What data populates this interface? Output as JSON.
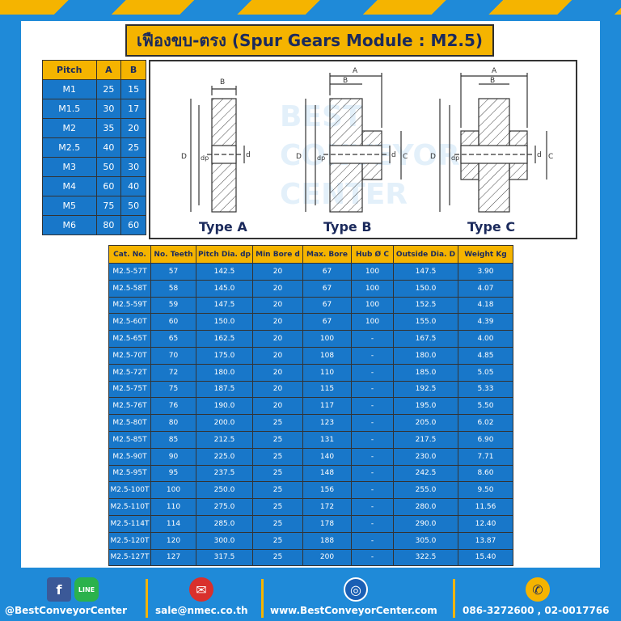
{
  "title": "เฟืองขบ-ตรง (Spur Gears Module : M2.5)",
  "pitch_table": {
    "headers": [
      "Pitch",
      "A",
      "B"
    ],
    "rows": [
      [
        "M1",
        "25",
        "15"
      ],
      [
        "M1.5",
        "30",
        "17"
      ],
      [
        "M2",
        "35",
        "20"
      ],
      [
        "M2.5",
        "40",
        "25"
      ],
      [
        "M3",
        "50",
        "30"
      ],
      [
        "M4",
        "60",
        "40"
      ],
      [
        "M5",
        "75",
        "50"
      ],
      [
        "M6",
        "80",
        "60"
      ]
    ]
  },
  "diagram": {
    "types": [
      "Type A",
      "Type B",
      "Type C"
    ],
    "dim_labels": {
      "a": "A",
      "b": "B",
      "d_outer": "D",
      "dp": "dp",
      "d_bore": "d",
      "c": "C"
    },
    "watermark": [
      "BEST",
      "CONVEYOR",
      "CENTER"
    ]
  },
  "spec_table": {
    "headers": [
      "Cat. No.",
      "No. Teeth",
      "Pitch Dia. dp",
      "Min Bore d",
      "Max. Bore",
      "Hub Ø C",
      "Outside Dia. D",
      "Weight Kg"
    ],
    "rows": [
      [
        "M2.5-57T",
        "57",
        "142.5",
        "20",
        "67",
        "100",
        "147.5",
        "3.90"
      ],
      [
        "M2.5-58T",
        "58",
        "145.0",
        "20",
        "67",
        "100",
        "150.0",
        "4.07"
      ],
      [
        "M2.5-59T",
        "59",
        "147.5",
        "20",
        "67",
        "100",
        "152.5",
        "4.18"
      ],
      [
        "M2.5-60T",
        "60",
        "150.0",
        "20",
        "67",
        "100",
        "155.0",
        "4.39"
      ],
      [
        "M2.5-65T",
        "65",
        "162.5",
        "20",
        "100",
        "-",
        "167.5",
        "4.00"
      ],
      [
        "M2.5-70T",
        "70",
        "175.0",
        "20",
        "108",
        "-",
        "180.0",
        "4.85"
      ],
      [
        "M2.5-72T",
        "72",
        "180.0",
        "20",
        "110",
        "-",
        "185.0",
        "5.05"
      ],
      [
        "M2.5-75T",
        "75",
        "187.5",
        "20",
        "115",
        "-",
        "192.5",
        "5.33"
      ],
      [
        "M2.5-76T",
        "76",
        "190.0",
        "20",
        "117",
        "-",
        "195.0",
        "5.50"
      ],
      [
        "M2.5-80T",
        "80",
        "200.0",
        "25",
        "123",
        "-",
        "205.0",
        "6.02"
      ],
      [
        "M2.5-85T",
        "85",
        "212.5",
        "25",
        "131",
        "-",
        "217.5",
        "6.90"
      ],
      [
        "M2.5-90T",
        "90",
        "225.0",
        "25",
        "140",
        "-",
        "230.0",
        "7.71"
      ],
      [
        "M2.5-95T",
        "95",
        "237.5",
        "25",
        "148",
        "-",
        "242.5",
        "8.60"
      ],
      [
        "M2.5-100T",
        "100",
        "250.0",
        "25",
        "156",
        "-",
        "255.0",
        "9.50"
      ],
      [
        "M2.5-110T",
        "110",
        "275.0",
        "25",
        "172",
        "-",
        "280.0",
        "11.56"
      ],
      [
        "M2.5-114T",
        "114",
        "285.0",
        "25",
        "178",
        "-",
        "290.0",
        "12.40"
      ],
      [
        "M2.5-120T",
        "120",
        "300.0",
        "25",
        "188",
        "-",
        "305.0",
        "13.87"
      ],
      [
        "M2.5-127T",
        "127",
        "317.5",
        "25",
        "200",
        "-",
        "322.5",
        "15.40"
      ]
    ]
  },
  "footer": {
    "facebook": "@BestConveyorCenter",
    "line_label": "LINE",
    "email": "sale@nmec.co.th",
    "website": "www.BestConveyorCenter.com",
    "phone": "086-3272600 , 02-0017766",
    "icons": [
      "facebook-icon",
      "line-icon",
      "mail-icon",
      "globe-icon",
      "phone-icon"
    ],
    "colors": {
      "accent": "#f5b400",
      "blue": "#1f8ad8",
      "mail_red": "#d9302c",
      "line_green": "#2bb24c"
    }
  }
}
